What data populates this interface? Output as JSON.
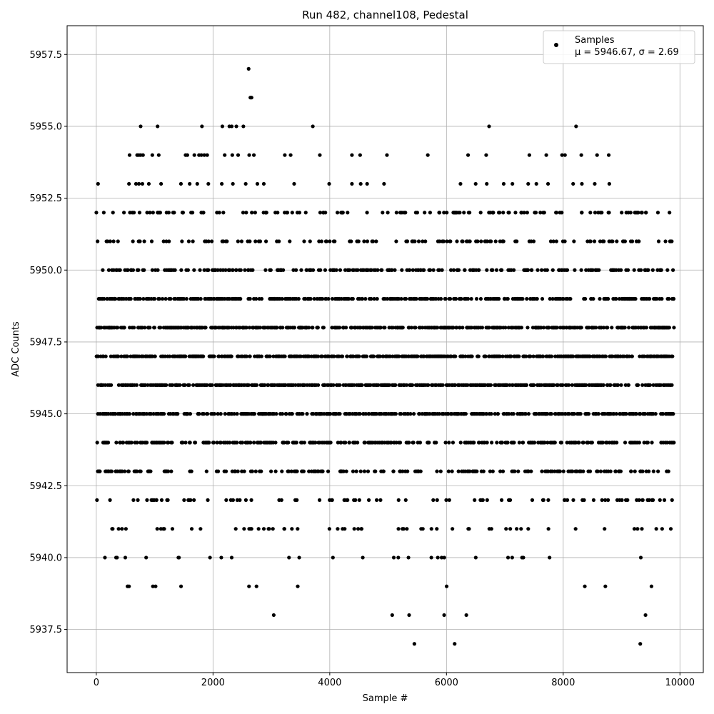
{
  "chart_data": {
    "type": "scatter",
    "title": "Run 482, channel108, Pedestal",
    "xlabel": "Sample #",
    "ylabel": "ADC Counts",
    "xlim": [
      -500,
      10400
    ],
    "ylim": [
      5936.0,
      5958.5
    ],
    "x_ticks": [
      0,
      2000,
      4000,
      6000,
      8000,
      10000
    ],
    "x_tick_labels": [
      "0",
      "2000",
      "4000",
      "6000",
      "8000",
      "10000"
    ],
    "y_ticks": [
      5937.5,
      5940.0,
      5942.5,
      5945.0,
      5947.5,
      5950.0,
      5952.5,
      5955.0,
      5957.5
    ],
    "y_tick_labels": [
      "5937.5",
      "5940.0",
      "5942.5",
      "5945.0",
      "5947.5",
      "5950.0",
      "5952.5",
      "5955.0",
      "5957.5"
    ],
    "grid": true,
    "legend": {
      "placement": "top-right",
      "entries": [
        {
          "name": "Samples",
          "stats": "μ = 5946.67, σ = 2.69",
          "color": "#000000"
        }
      ]
    },
    "series": [
      {
        "name": "Samples",
        "color": "#000000",
        "n_samples": 9900,
        "x_range": [
          0,
          9900
        ],
        "levels": [
          5937,
          5938,
          5939,
          5940,
          5941,
          5942,
          5943,
          5944,
          5945,
          5946,
          5947,
          5948,
          5949,
          5950,
          5951,
          5952,
          5953,
          5954,
          5955,
          5956,
          5957
        ],
        "points": [
          {
            "x": 2610,
            "y": 5957
          },
          {
            "x": 2640,
            "y": 5956
          },
          {
            "x": 2660,
            "y": 5956
          },
          {
            "x": 760,
            "y": 5955
          },
          {
            "x": 1050,
            "y": 5955
          },
          {
            "x": 1810,
            "y": 5955
          },
          {
            "x": 2160,
            "y": 5955
          },
          {
            "x": 2280,
            "y": 5955
          },
          {
            "x": 2320,
            "y": 5955
          },
          {
            "x": 2400,
            "y": 5955
          },
          {
            "x": 2520,
            "y": 5955
          },
          {
            "x": 3710,
            "y": 5955
          },
          {
            "x": 6730,
            "y": 5955
          },
          {
            "x": 8220,
            "y": 5955
          },
          {
            "x": 570,
            "y": 5954
          },
          {
            "x": 700,
            "y": 5954
          },
          {
            "x": 730,
            "y": 5954
          },
          {
            "x": 760,
            "y": 5954
          },
          {
            "x": 800,
            "y": 5954
          },
          {
            "x": 960,
            "y": 5954
          },
          {
            "x": 1070,
            "y": 5954
          },
          {
            "x": 1530,
            "y": 5954
          },
          {
            "x": 1560,
            "y": 5954
          },
          {
            "x": 1680,
            "y": 5954
          },
          {
            "x": 1760,
            "y": 5954
          },
          {
            "x": 1800,
            "y": 5954
          },
          {
            "x": 1850,
            "y": 5954
          },
          {
            "x": 1900,
            "y": 5954
          },
          {
            "x": 2200,
            "y": 5954
          },
          {
            "x": 2330,
            "y": 5954
          },
          {
            "x": 2430,
            "y": 5954
          },
          {
            "x": 2620,
            "y": 5954
          },
          {
            "x": 2700,
            "y": 5954
          },
          {
            "x": 3230,
            "y": 5954
          },
          {
            "x": 3330,
            "y": 5954
          },
          {
            "x": 3830,
            "y": 5954
          },
          {
            "x": 4380,
            "y": 5954
          },
          {
            "x": 4520,
            "y": 5954
          },
          {
            "x": 4980,
            "y": 5954
          },
          {
            "x": 5680,
            "y": 5954
          },
          {
            "x": 6370,
            "y": 5954
          },
          {
            "x": 6680,
            "y": 5954
          },
          {
            "x": 7420,
            "y": 5954
          },
          {
            "x": 7710,
            "y": 5954
          },
          {
            "x": 7980,
            "y": 5954
          },
          {
            "x": 8030,
            "y": 5954
          },
          {
            "x": 8310,
            "y": 5954
          },
          {
            "x": 8580,
            "y": 5954
          },
          {
            "x": 8780,
            "y": 5954
          },
          {
            "x": 30,
            "y": 5953
          },
          {
            "x": 560,
            "y": 5953
          },
          {
            "x": 680,
            "y": 5953
          },
          {
            "x": 730,
            "y": 5953
          },
          {
            "x": 790,
            "y": 5953
          },
          {
            "x": 900,
            "y": 5953
          },
          {
            "x": 1110,
            "y": 5953
          },
          {
            "x": 1450,
            "y": 5953
          },
          {
            "x": 1600,
            "y": 5953
          },
          {
            "x": 1730,
            "y": 5953
          },
          {
            "x": 1920,
            "y": 5953
          },
          {
            "x": 2150,
            "y": 5953
          },
          {
            "x": 2340,
            "y": 5953
          },
          {
            "x": 2560,
            "y": 5953
          },
          {
            "x": 2760,
            "y": 5953
          },
          {
            "x": 2870,
            "y": 5953
          },
          {
            "x": 3390,
            "y": 5953
          },
          {
            "x": 3990,
            "y": 5953
          },
          {
            "x": 4380,
            "y": 5953
          },
          {
            "x": 4530,
            "y": 5953
          },
          {
            "x": 4640,
            "y": 5953
          },
          {
            "x": 4930,
            "y": 5953
          },
          {
            "x": 6240,
            "y": 5953
          },
          {
            "x": 6500,
            "y": 5953
          },
          {
            "x": 6690,
            "y": 5953
          },
          {
            "x": 6980,
            "y": 5953
          },
          {
            "x": 7130,
            "y": 5953
          },
          {
            "x": 7400,
            "y": 5953
          },
          {
            "x": 7540,
            "y": 5953
          },
          {
            "x": 7740,
            "y": 5953
          },
          {
            "x": 8170,
            "y": 5953
          },
          {
            "x": 8320,
            "y": 5953
          },
          {
            "x": 8540,
            "y": 5953
          },
          {
            "x": 8790,
            "y": 5953
          },
          {
            "x": 3040,
            "y": 5938
          },
          {
            "x": 5070,
            "y": 5938
          },
          {
            "x": 5360,
            "y": 5938
          },
          {
            "x": 5960,
            "y": 5938
          },
          {
            "x": 6340,
            "y": 5938
          },
          {
            "x": 9410,
            "y": 5938
          },
          {
            "x": 5450,
            "y": 5937
          },
          {
            "x": 6140,
            "y": 5937
          },
          {
            "x": 9320,
            "y": 5937
          }
        ]
      }
    ]
  }
}
